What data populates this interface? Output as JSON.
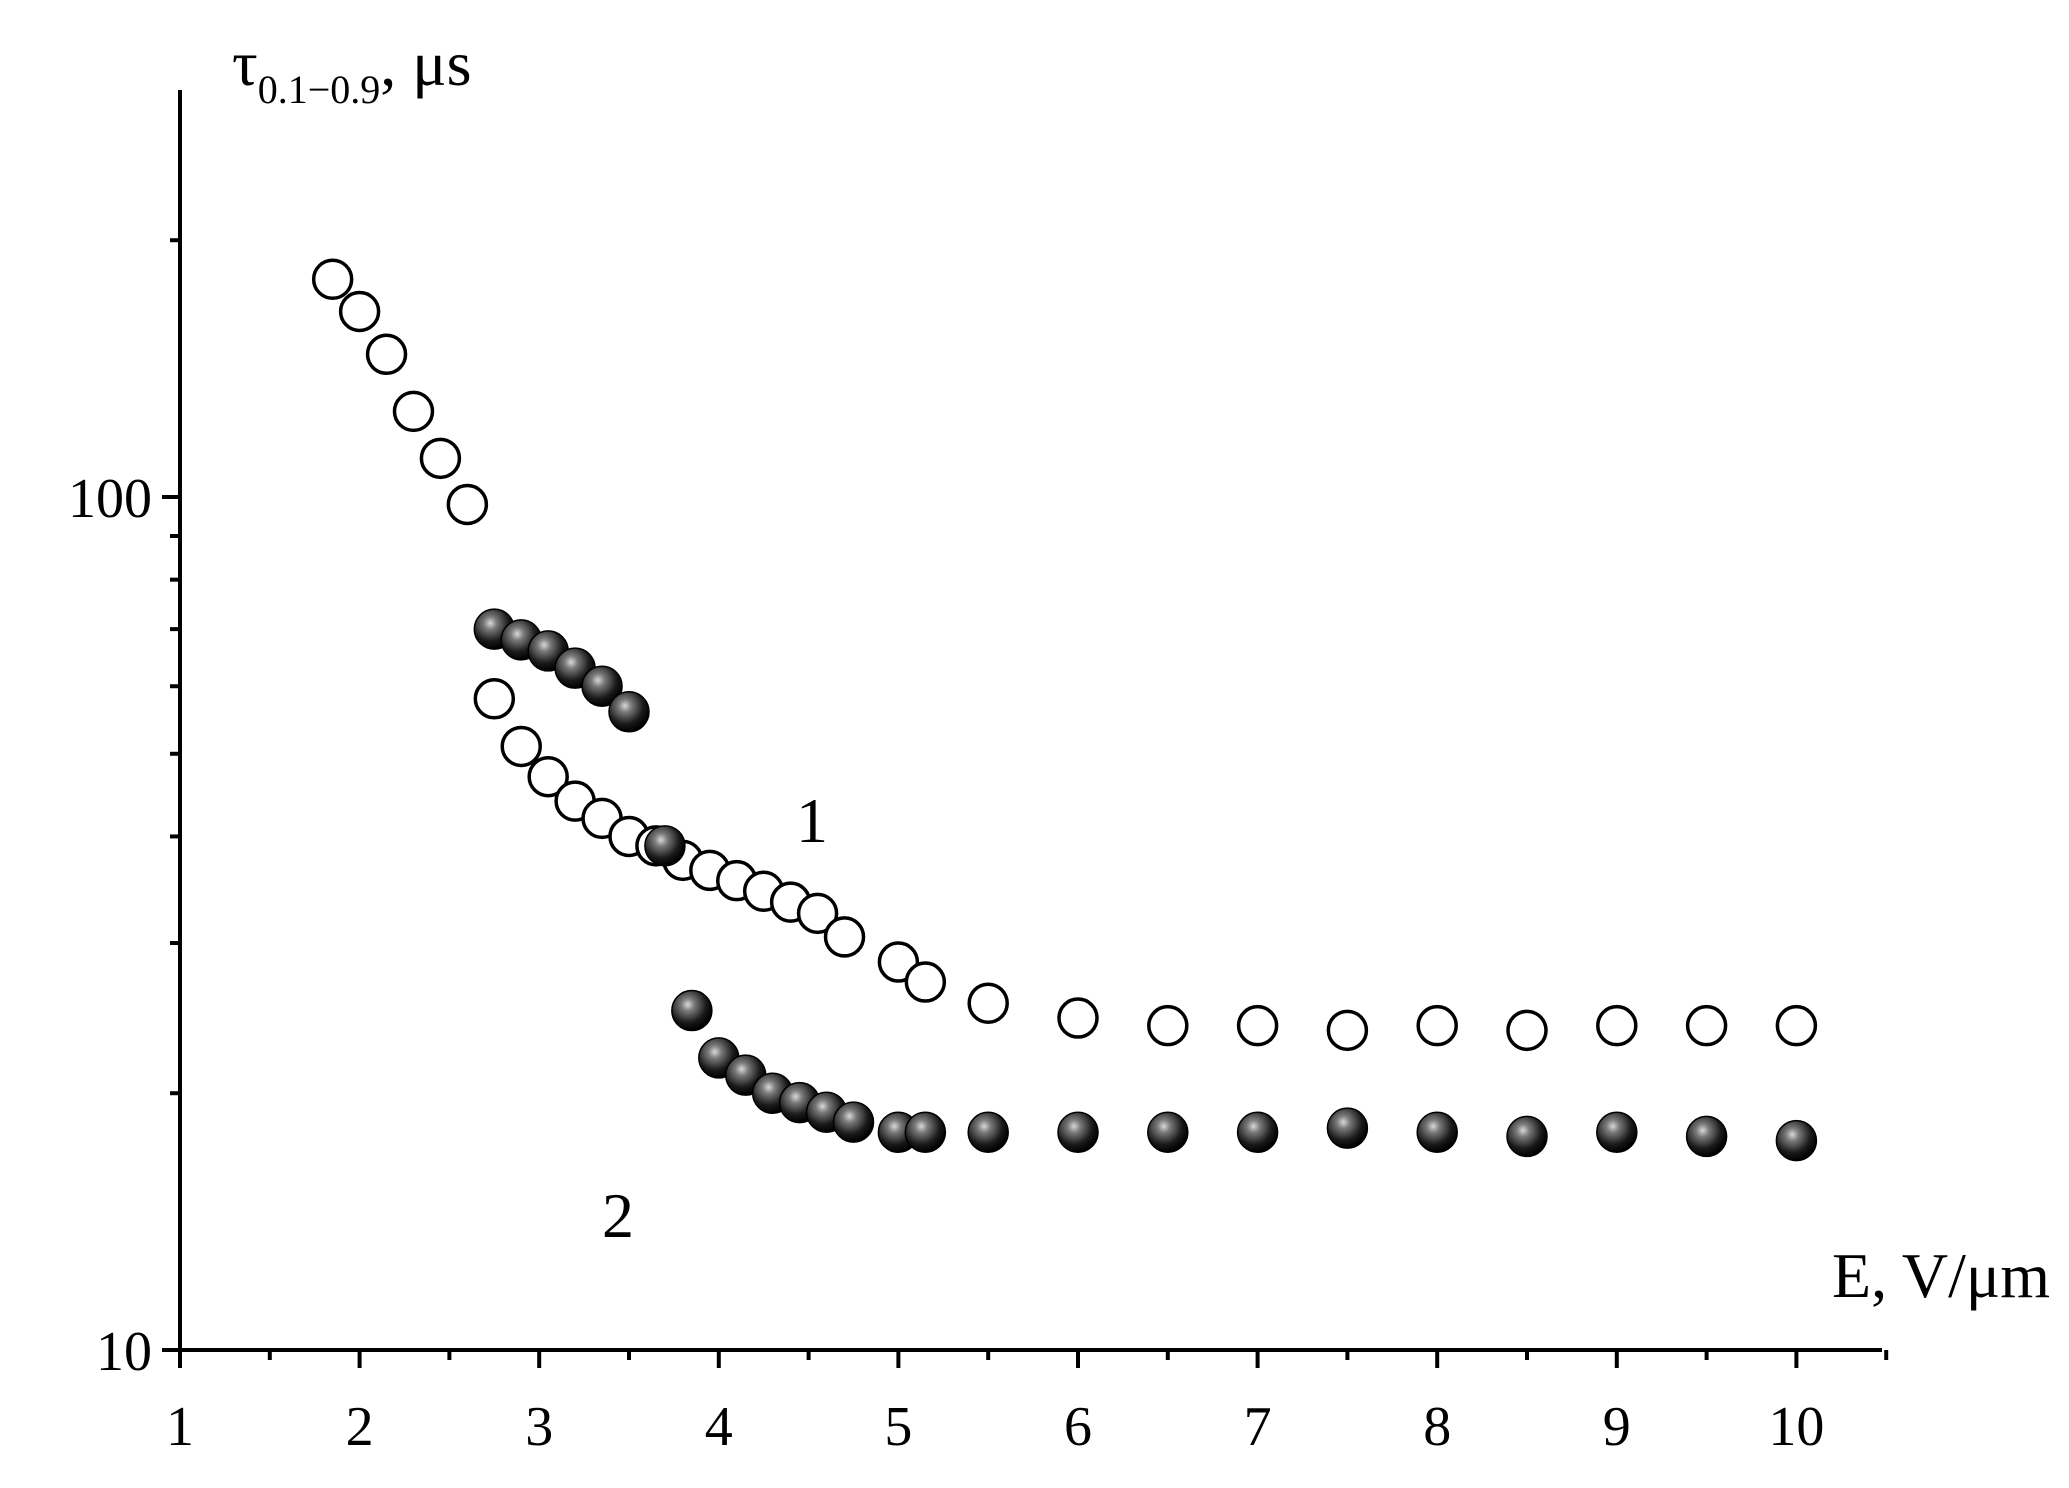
{
  "chart_data": {
    "type": "scatter",
    "y_scale": "log",
    "xlim": [
      1,
      10.5
    ],
    "ylim": [
      10,
      250
    ],
    "x_ticks": [
      "1",
      "2",
      "3",
      "4",
      "5",
      "6",
      "7",
      "8",
      "9",
      "10"
    ],
    "y_ticks": [
      "10",
      "100"
    ],
    "ylabel": {
      "main": "τ",
      "sub": "0.1−0.9",
      "unit": ", μs"
    },
    "xlabel": "E, V/μm",
    "grid": false,
    "series": [
      {
        "label": "1",
        "marker": "open-circle",
        "points": [
          [
            1.85,
            180
          ],
          [
            2.0,
            165
          ],
          [
            2.15,
            147
          ],
          [
            2.3,
            126
          ],
          [
            2.45,
            111
          ],
          [
            2.6,
            98
          ],
          [
            2.75,
            58
          ],
          [
            2.9,
            51
          ],
          [
            3.05,
            47
          ],
          [
            3.2,
            44
          ],
          [
            3.35,
            42
          ],
          [
            3.5,
            40
          ],
          [
            3.65,
            39
          ],
          [
            3.8,
            37.5
          ],
          [
            3.95,
            36.5
          ],
          [
            4.1,
            35.5
          ],
          [
            4.25,
            34.5
          ],
          [
            4.4,
            33.5
          ],
          [
            4.55,
            32.5
          ],
          [
            4.7,
            30.5
          ],
          [
            5.0,
            28.5
          ],
          [
            5.15,
            27
          ],
          [
            5.5,
            25.5
          ],
          [
            6.0,
            24.5
          ],
          [
            6.5,
            24
          ],
          [
            7.0,
            24
          ],
          [
            7.5,
            23.7
          ],
          [
            8.0,
            24
          ],
          [
            8.5,
            23.7
          ],
          [
            9.0,
            24
          ],
          [
            9.5,
            24
          ],
          [
            10.0,
            24
          ]
        ]
      },
      {
        "label": "2",
        "marker": "filled-sphere",
        "points": [
          [
            2.75,
            70
          ],
          [
            2.9,
            68
          ],
          [
            3.05,
            66
          ],
          [
            3.2,
            63
          ],
          [
            3.35,
            60
          ],
          [
            3.5,
            56
          ],
          [
            3.7,
            39
          ],
          [
            3.85,
            25
          ],
          [
            4.0,
            22
          ],
          [
            4.15,
            21
          ],
          [
            4.3,
            20
          ],
          [
            4.45,
            19.5
          ],
          [
            4.6,
            19
          ],
          [
            4.75,
            18.5
          ],
          [
            5.0,
            18
          ],
          [
            5.15,
            18
          ],
          [
            5.5,
            18
          ],
          [
            6.0,
            18
          ],
          [
            6.5,
            18
          ],
          [
            7.0,
            18
          ],
          [
            7.5,
            18.2
          ],
          [
            8.0,
            18
          ],
          [
            8.5,
            17.8
          ],
          [
            9.0,
            18
          ],
          [
            9.5,
            17.8
          ],
          [
            10.0,
            17.6
          ]
        ]
      }
    ]
  }
}
